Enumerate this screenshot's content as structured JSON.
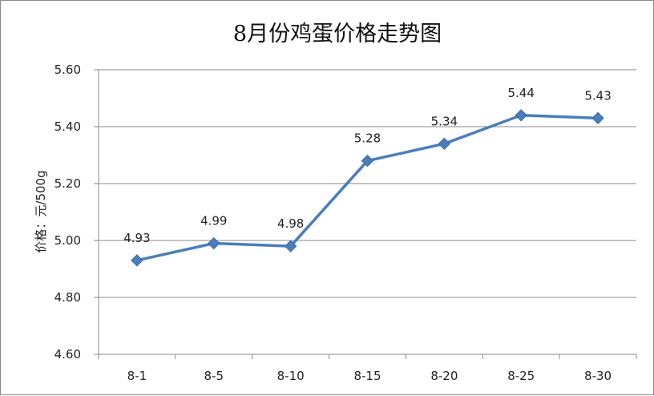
{
  "chart_data": {
    "type": "line",
    "title": "8月份鸡蛋价格走势图",
    "xlabel": "",
    "ylabel": "价格：元/500g",
    "categories": [
      "8-1",
      "8-5",
      "8-10",
      "8-15",
      "8-20",
      "8-25",
      "8-30"
    ],
    "series": [
      {
        "values": [
          4.93,
          4.99,
          4.98,
          5.28,
          5.34,
          5.44,
          5.43
        ]
      }
    ],
    "ylim": [
      4.6,
      5.6
    ],
    "yticks": [
      4.6,
      4.8,
      5.0,
      5.2,
      5.4,
      5.6
    ],
    "ytick_decimals": 2,
    "grid": "horizontal",
    "legend": "none",
    "line_color": "#4A7EBB",
    "marker_color": "#4A7EBB",
    "marker": "diamond"
  }
}
